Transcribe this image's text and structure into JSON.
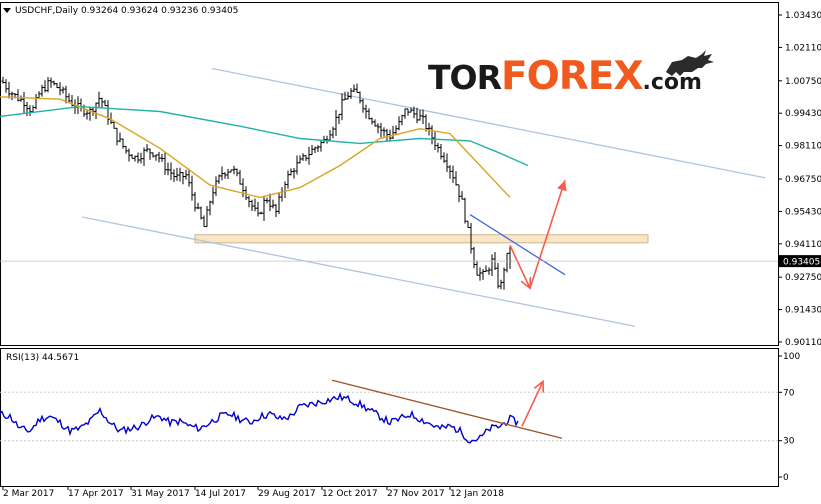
{
  "header": {
    "menu_icon": "triangle-down-icon",
    "symbol_line": "USDCHF,Daily  0.93264 0.93624 0.93236 0.93405"
  },
  "rsi_header": "RSI(13) 44.5671",
  "logo": {
    "part1": "TOR",
    "part2": "FOREX",
    "part3": ".com",
    "bull_icon": "bull-icon"
  },
  "current_price": "0.93405",
  "colors": {
    "candles": "#000000",
    "ma_fast": "#DAA520",
    "ma_slow": "#20B2AA",
    "channel": "#B0C4DE",
    "zone": "#F5DEB3",
    "arrows": "#FA5A4A",
    "rsi_line": "#0000CD",
    "rsi_trend": "#A0522D",
    "price_tag_bg": "#000000"
  },
  "chart_data": [
    {
      "type": "candlestick",
      "symbol": "USDCHF",
      "timeframe": "Daily",
      "ohlc_last": {
        "open": 0.93264,
        "high": 0.93624,
        "low": 0.93236,
        "close": 0.93405
      },
      "y_ticks": [
        "1.03430",
        "1.02110",
        "1.00750",
        "0.99430",
        "0.98110",
        "0.96750",
        "0.95430",
        "0.94110",
        "0.92750",
        "0.91430",
        "0.90110"
      ],
      "ylim": [
        0.9011,
        1.0343
      ],
      "x_ticks": [
        "2 Mar 2017",
        "17 Apr 2017",
        "31 May 2017",
        "14 Jul 2017",
        "29 Aug 2017",
        "12 Oct 2017",
        "27 Nov 2017",
        "12 Jan 2018"
      ],
      "price_path": [
        [
          0,
          1.0085
        ],
        [
          8,
          1.004
        ],
        [
          16,
          1.001
        ],
        [
          24,
          0.999
        ],
        [
          32,
          0.995
        ],
        [
          40,
          1.003
        ],
        [
          50,
          1.007
        ],
        [
          60,
          1.004
        ],
        [
          70,
          0.999
        ],
        [
          80,
          0.996
        ],
        [
          90,
          0.995
        ],
        [
          100,
          1.001
        ],
        [
          108,
          0.993
        ],
        [
          116,
          0.985
        ],
        [
          126,
          0.979
        ],
        [
          136,
          0.976
        ],
        [
          146,
          0.979
        ],
        [
          156,
          0.978
        ],
        [
          166,
          0.972
        ],
        [
          176,
          0.968
        ],
        [
          186,
          0.969
        ],
        [
          196,
          0.956
        ],
        [
          204,
          0.948
        ],
        [
          212,
          0.962
        ],
        [
          222,
          0.97
        ],
        [
          232,
          0.972
        ],
        [
          242,
          0.965
        ],
        [
          250,
          0.958
        ],
        [
          258,
          0.952
        ],
        [
          266,
          0.96
        ],
        [
          276,
          0.954
        ],
        [
          284,
          0.966
        ],
        [
          294,
          0.972
        ],
        [
          304,
          0.976
        ],
        [
          314,
          0.98
        ],
        [
          324,
          0.983
        ],
        [
          334,
          0.99
        ],
        [
          342,
          0.998
        ],
        [
          350,
          1.003
        ],
        [
          358,
          1.002
        ],
        [
          366,
          0.995
        ],
        [
          374,
          0.991
        ],
        [
          382,
          0.987
        ],
        [
          390,
          0.985
        ],
        [
          398,
          0.989
        ],
        [
          406,
          0.996
        ],
        [
          414,
          0.994
        ],
        [
          422,
          0.992
        ],
        [
          430,
          0.986
        ],
        [
          438,
          0.98
        ],
        [
          446,
          0.975
        ],
        [
          454,
          0.968
        ],
        [
          462,
          0.958
        ],
        [
          470,
          0.942
        ],
        [
          476,
          0.93
        ],
        [
          484,
          0.928
        ],
        [
          492,
          0.934
        ],
        [
          500,
          0.922
        ],
        [
          506,
          0.936
        ],
        [
          512,
          0.934
        ]
      ],
      "ma_fast": [
        [
          0,
          1.001
        ],
        [
          60,
          1.0
        ],
        [
          110,
          0.992
        ],
        [
          160,
          0.98
        ],
        [
          210,
          0.965
        ],
        [
          260,
          0.96
        ],
        [
          300,
          0.964
        ],
        [
          340,
          0.973
        ],
        [
          380,
          0.984
        ],
        [
          420,
          0.988
        ],
        [
          450,
          0.986
        ],
        [
          480,
          0.973
        ],
        [
          510,
          0.96
        ]
      ],
      "ma_slow": [
        [
          0,
          0.993
        ],
        [
          80,
          0.997
        ],
        [
          160,
          0.995
        ],
        [
          240,
          0.989
        ],
        [
          300,
          0.984
        ],
        [
          360,
          0.982
        ],
        [
          420,
          0.984
        ],
        [
          470,
          0.983
        ],
        [
          500,
          0.978
        ],
        [
          528,
          0.973
        ]
      ],
      "channel_upper": [
        [
          212,
          1.0125
        ],
        [
          765,
          0.968
        ]
      ],
      "channel_lower": [
        [
          82,
          0.952
        ],
        [
          635,
          0.9075
        ]
      ],
      "support_zone": {
        "x": [
          195,
          648
        ],
        "y_range": [
          0.9415,
          0.9448
        ]
      },
      "short_trend": [
        [
          470,
          0.953
        ],
        [
          565,
          0.9285
        ]
      ],
      "arrow_down": [
        [
          510,
          0.9405
        ],
        [
          530,
          0.923
        ]
      ],
      "arrow_up": [
        [
          530,
          0.923
        ],
        [
          565,
          0.967
        ]
      ]
    },
    {
      "type": "line",
      "name": "RSI(13)",
      "value_last": 44.5671,
      "ylim": [
        0,
        100
      ],
      "y_ticks": [
        "100",
        "70",
        "30",
        "0"
      ],
      "rsi_path": [
        [
          0,
          52
        ],
        [
          10,
          50
        ],
        [
          20,
          40
        ],
        [
          30,
          38
        ],
        [
          40,
          48
        ],
        [
          50,
          50
        ],
        [
          60,
          45
        ],
        [
          70,
          38
        ],
        [
          80,
          40
        ],
        [
          90,
          46
        ],
        [
          100,
          55
        ],
        [
          110,
          45
        ],
        [
          120,
          38
        ],
        [
          130,
          40
        ],
        [
          140,
          42
        ],
        [
          150,
          48
        ],
        [
          160,
          50
        ],
        [
          170,
          45
        ],
        [
          180,
          46
        ],
        [
          190,
          42
        ],
        [
          200,
          40
        ],
        [
          210,
          45
        ],
        [
          220,
          50
        ],
        [
          230,
          52
        ],
        [
          240,
          48
        ],
        [
          250,
          45
        ],
        [
          260,
          50
        ],
        [
          270,
          52
        ],
        [
          280,
          48
        ],
        [
          290,
          50
        ],
        [
          300,
          58
        ],
        [
          310,
          60
        ],
        [
          320,
          62
        ],
        [
          330,
          64
        ],
        [
          340,
          66
        ],
        [
          350,
          64
        ],
        [
          360,
          60
        ],
        [
          370,
          55
        ],
        [
          380,
          50
        ],
        [
          390,
          45
        ],
        [
          400,
          48
        ],
        [
          410,
          52
        ],
        [
          420,
          48
        ],
        [
          430,
          44
        ],
        [
          440,
          40
        ],
        [
          450,
          42
        ],
        [
          460,
          38
        ],
        [
          470,
          30
        ],
        [
          480,
          32
        ],
        [
          490,
          40
        ],
        [
          500,
          42
        ],
        [
          510,
          48
        ],
        [
          518,
          45
        ]
      ],
      "rsi_trend": [
        [
          332,
          80
        ],
        [
          562,
          32
        ]
      ],
      "arrow_up": [
        [
          522,
          42
        ],
        [
          543,
          79
        ]
      ]
    }
  ]
}
